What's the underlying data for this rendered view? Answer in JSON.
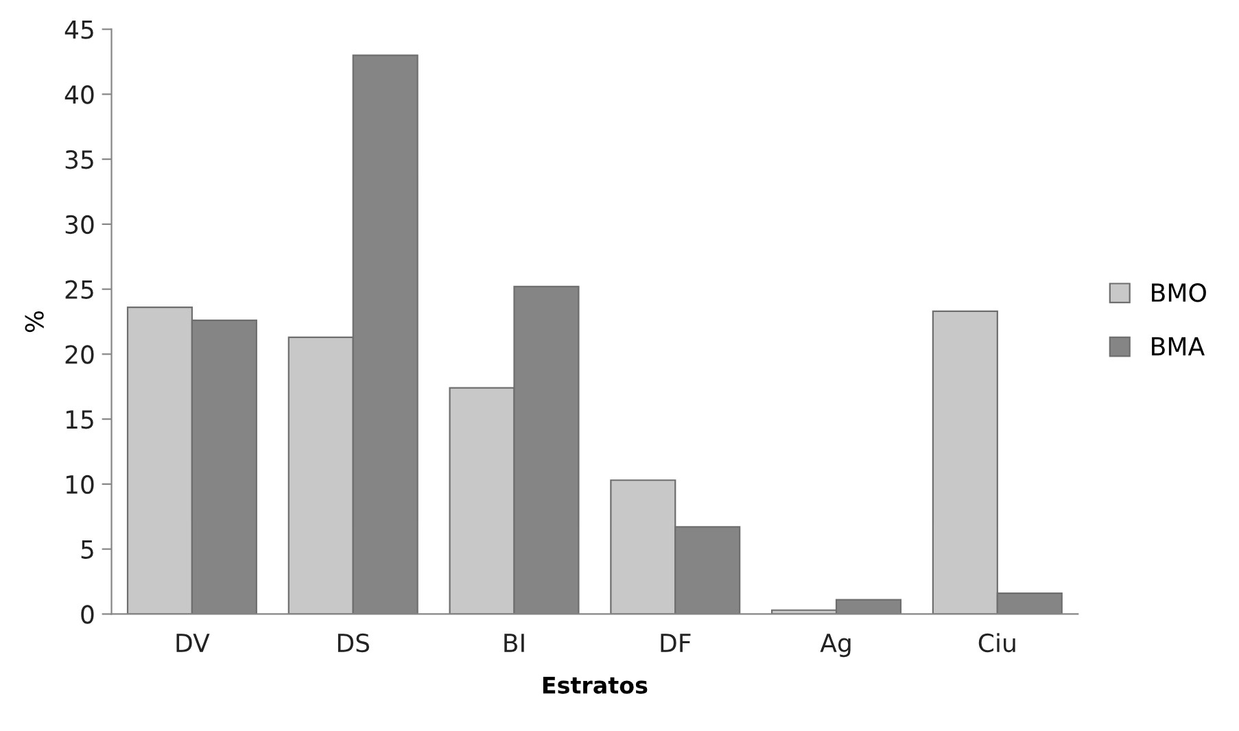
{
  "chart_data": {
    "type": "bar",
    "xlabel": "Estratos",
    "ylabel": "%",
    "categories": [
      "DV",
      "DS",
      "BI",
      "DF",
      "Ag",
      "Ciu"
    ],
    "series": [
      {
        "name": "BMO",
        "color": "#c8c8c8",
        "values": [
          23.6,
          21.3,
          17.4,
          10.3,
          0.3,
          23.3
        ]
      },
      {
        "name": "BMA",
        "color": "#858585",
        "values": [
          22.6,
          43.0,
          25.2,
          6.7,
          1.1,
          1.6
        ]
      }
    ],
    "ylim": [
      0,
      45
    ],
    "yticks": [
      0,
      5,
      10,
      15,
      20,
      25,
      30,
      35,
      40,
      45
    ],
    "grid": false,
    "legend": "right"
  }
}
